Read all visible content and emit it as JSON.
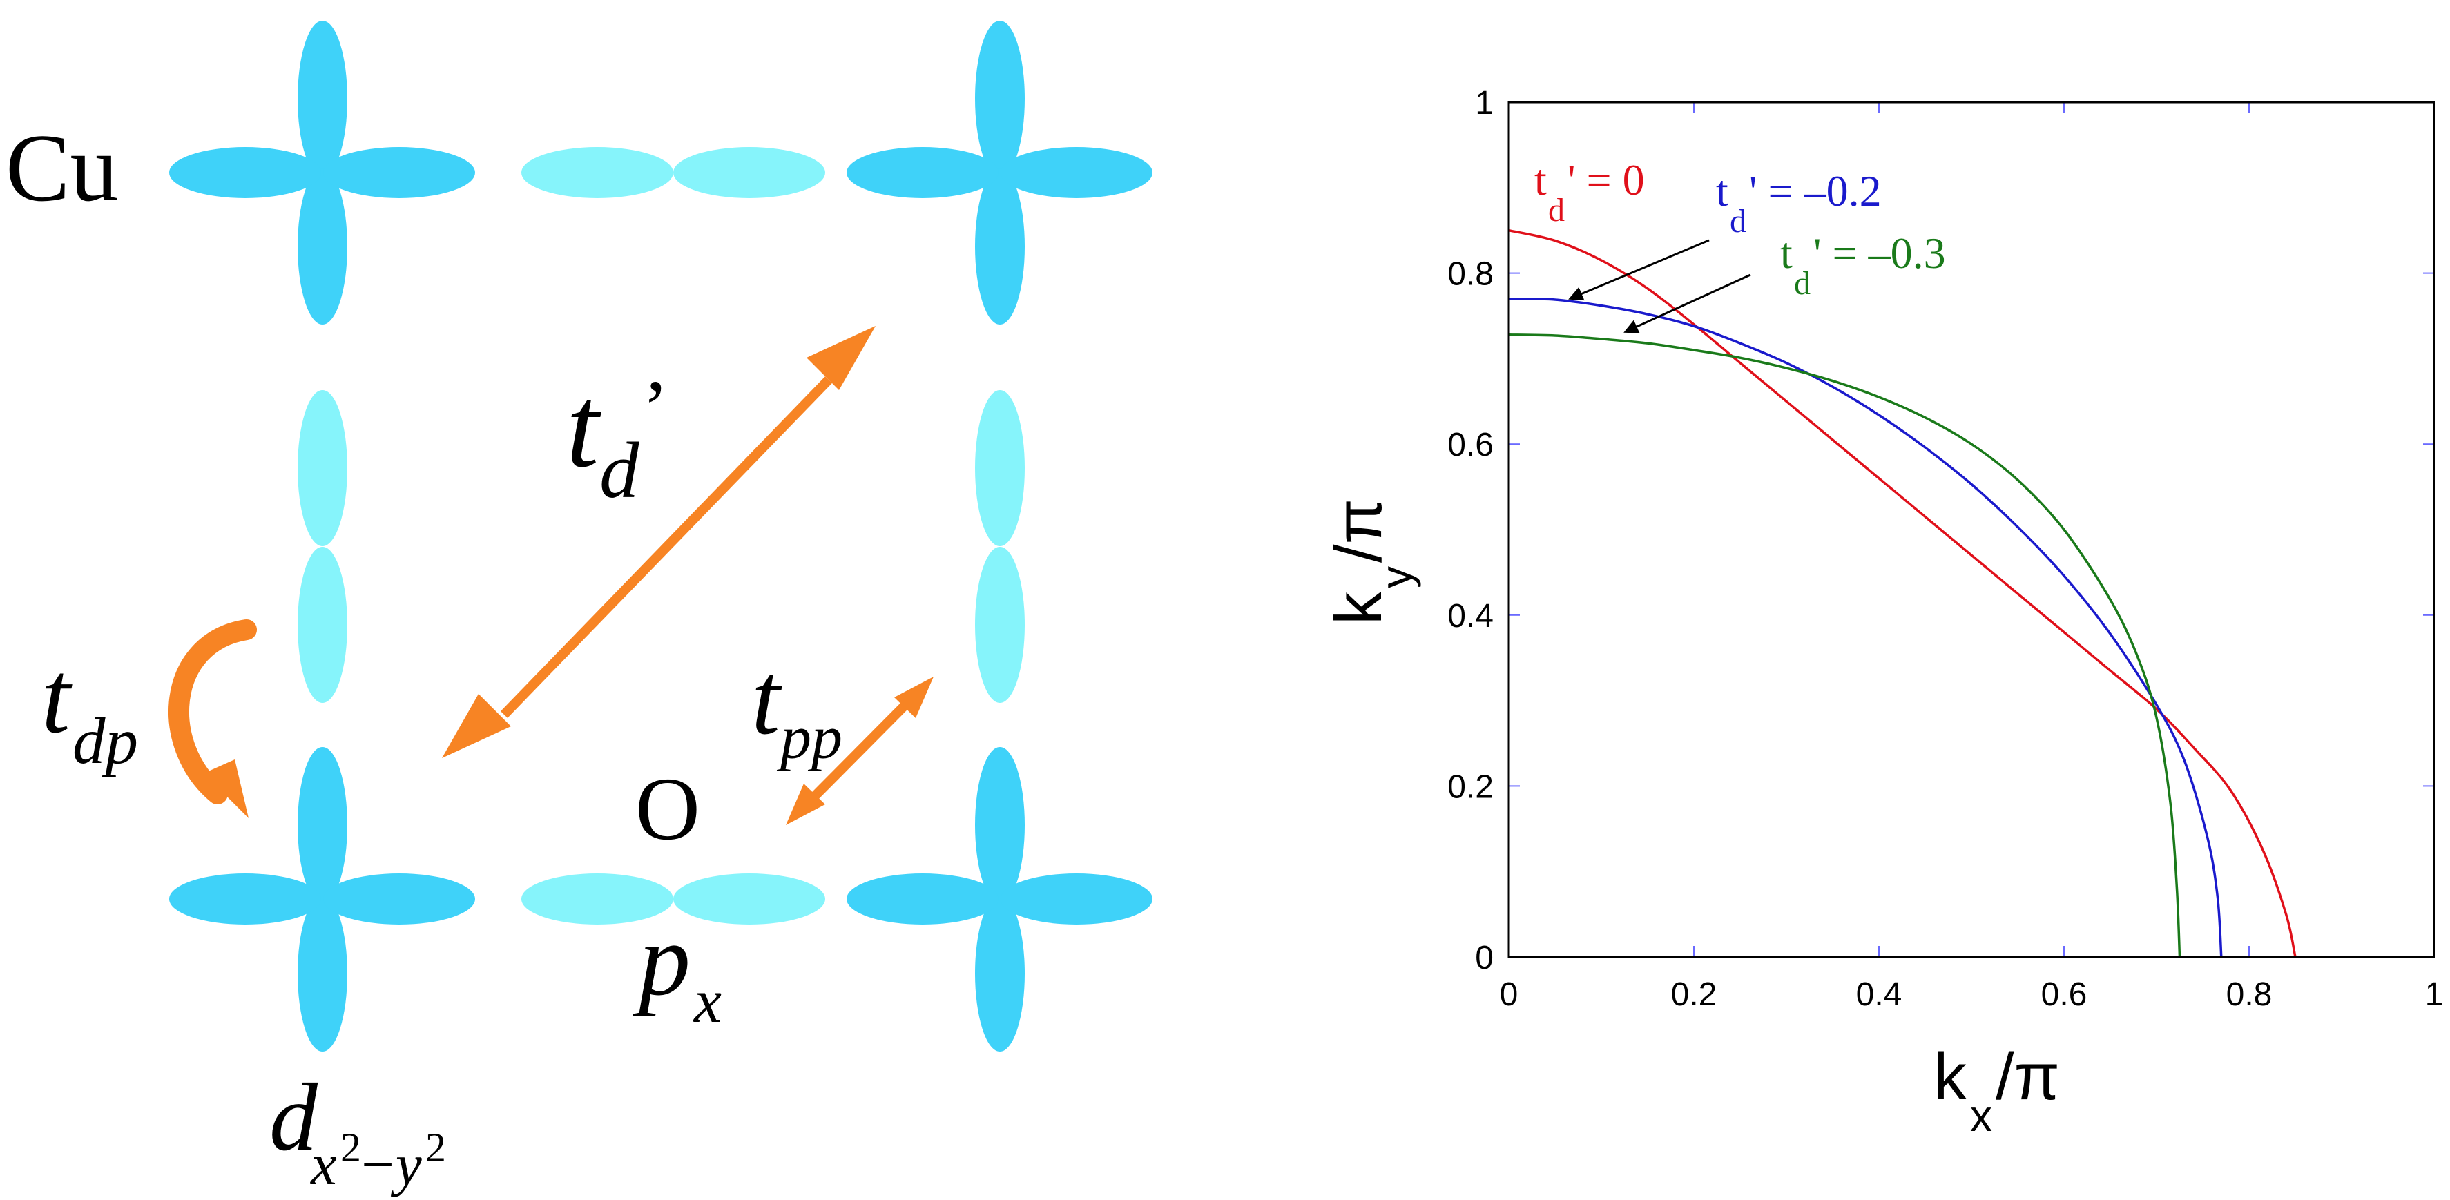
{
  "colors": {
    "orbital_d": "#3fd2f9",
    "orbital_p": "#86f4fb",
    "arrow": "#f78424",
    "text": "#000000",
    "curve_td0": "#e0101a",
    "curve_td02": "#1a1acc",
    "curve_td03": "#1a7a1a",
    "tick": "#6a6aff"
  },
  "diagram": {
    "cu_label": "Cu",
    "o_label": "O",
    "td_prime": {
      "main": "t",
      "sub": "d",
      "prime": "’"
    },
    "tdp": {
      "main": "t",
      "sub": "dp"
    },
    "tpp": {
      "main": "t",
      "sub": "pp"
    },
    "px": {
      "main": "p",
      "sub": "x"
    },
    "dorb": {
      "main": "d",
      "sub_x": "x",
      "sub_minus": "−",
      "sub_y": "y",
      "sup": "2"
    }
  },
  "chart_data": {
    "type": "line",
    "xlabel": {
      "main": "k",
      "sub": "x",
      "rest": "/π"
    },
    "ylabel": {
      "main": "k",
      "sub": "y",
      "rest": "/π"
    },
    "xlim": [
      0,
      1
    ],
    "ylim": [
      0,
      1
    ],
    "xticks": [
      "0",
      "0.2",
      "0.4",
      "0.6",
      "0.8",
      "1"
    ],
    "yticks": [
      "0",
      "0.2",
      "0.4",
      "0.6",
      "0.8",
      "1"
    ],
    "series": [
      {
        "name": "td0",
        "label_main": "t",
        "label_sub": "d",
        "label_rest": "' = 0",
        "color": "#e0101a",
        "points": [
          [
            0,
            0.85
          ],
          [
            0.05,
            0.838
          ],
          [
            0.1,
            0.815
          ],
          [
            0.15,
            0.782
          ],
          [
            0.2,
            0.74
          ],
          [
            0.25,
            0.695
          ],
          [
            0.3,
            0.65
          ],
          [
            0.35,
            0.605
          ],
          [
            0.4,
            0.56
          ],
          [
            0.45,
            0.515
          ],
          [
            0.5,
            0.47
          ],
          [
            0.55,
            0.425
          ],
          [
            0.6,
            0.38
          ],
          [
            0.65,
            0.335
          ],
          [
            0.7,
            0.29
          ],
          [
            0.74,
            0.245
          ],
          [
            0.78,
            0.195
          ],
          [
            0.815,
            0.125
          ],
          [
            0.84,
            0.05
          ],
          [
            0.85,
            0
          ]
        ]
      },
      {
        "name": "td02",
        "label_main": "t",
        "label_sub": "d",
        "label_rest": "' = –0.2",
        "color": "#1a1acc",
        "points": [
          [
            0,
            0.77
          ],
          [
            0.05,
            0.769
          ],
          [
            0.1,
            0.762
          ],
          [
            0.15,
            0.752
          ],
          [
            0.2,
            0.738
          ],
          [
            0.25,
            0.718
          ],
          [
            0.3,
            0.695
          ],
          [
            0.35,
            0.667
          ],
          [
            0.4,
            0.634
          ],
          [
            0.45,
            0.596
          ],
          [
            0.5,
            0.553
          ],
          [
            0.55,
            0.503
          ],
          [
            0.6,
            0.446
          ],
          [
            0.65,
            0.378
          ],
          [
            0.7,
            0.295
          ],
          [
            0.73,
            0.23
          ],
          [
            0.755,
            0.14
          ],
          [
            0.766,
            0.07
          ],
          [
            0.77,
            0
          ]
        ]
      },
      {
        "name": "td03",
        "label_main": "t",
        "label_sub": "d",
        "label_rest": "' = –0.3",
        "color": "#1a7a1a",
        "points": [
          [
            0,
            0.728
          ],
          [
            0.05,
            0.727
          ],
          [
            0.1,
            0.723
          ],
          [
            0.15,
            0.718
          ],
          [
            0.2,
            0.71
          ],
          [
            0.25,
            0.701
          ],
          [
            0.3,
            0.689
          ],
          [
            0.35,
            0.674
          ],
          [
            0.4,
            0.655
          ],
          [
            0.45,
            0.631
          ],
          [
            0.5,
            0.6
          ],
          [
            0.55,
            0.558
          ],
          [
            0.6,
            0.5
          ],
          [
            0.65,
            0.418
          ],
          [
            0.68,
            0.35
          ],
          [
            0.7,
            0.28
          ],
          [
            0.715,
            0.18
          ],
          [
            0.722,
            0.08
          ],
          [
            0.725,
            0
          ]
        ]
      }
    ],
    "annotation_targets": {
      "td02": [
        0.07,
        0.77
      ],
      "td03": [
        0.13,
        0.73
      ]
    }
  }
}
